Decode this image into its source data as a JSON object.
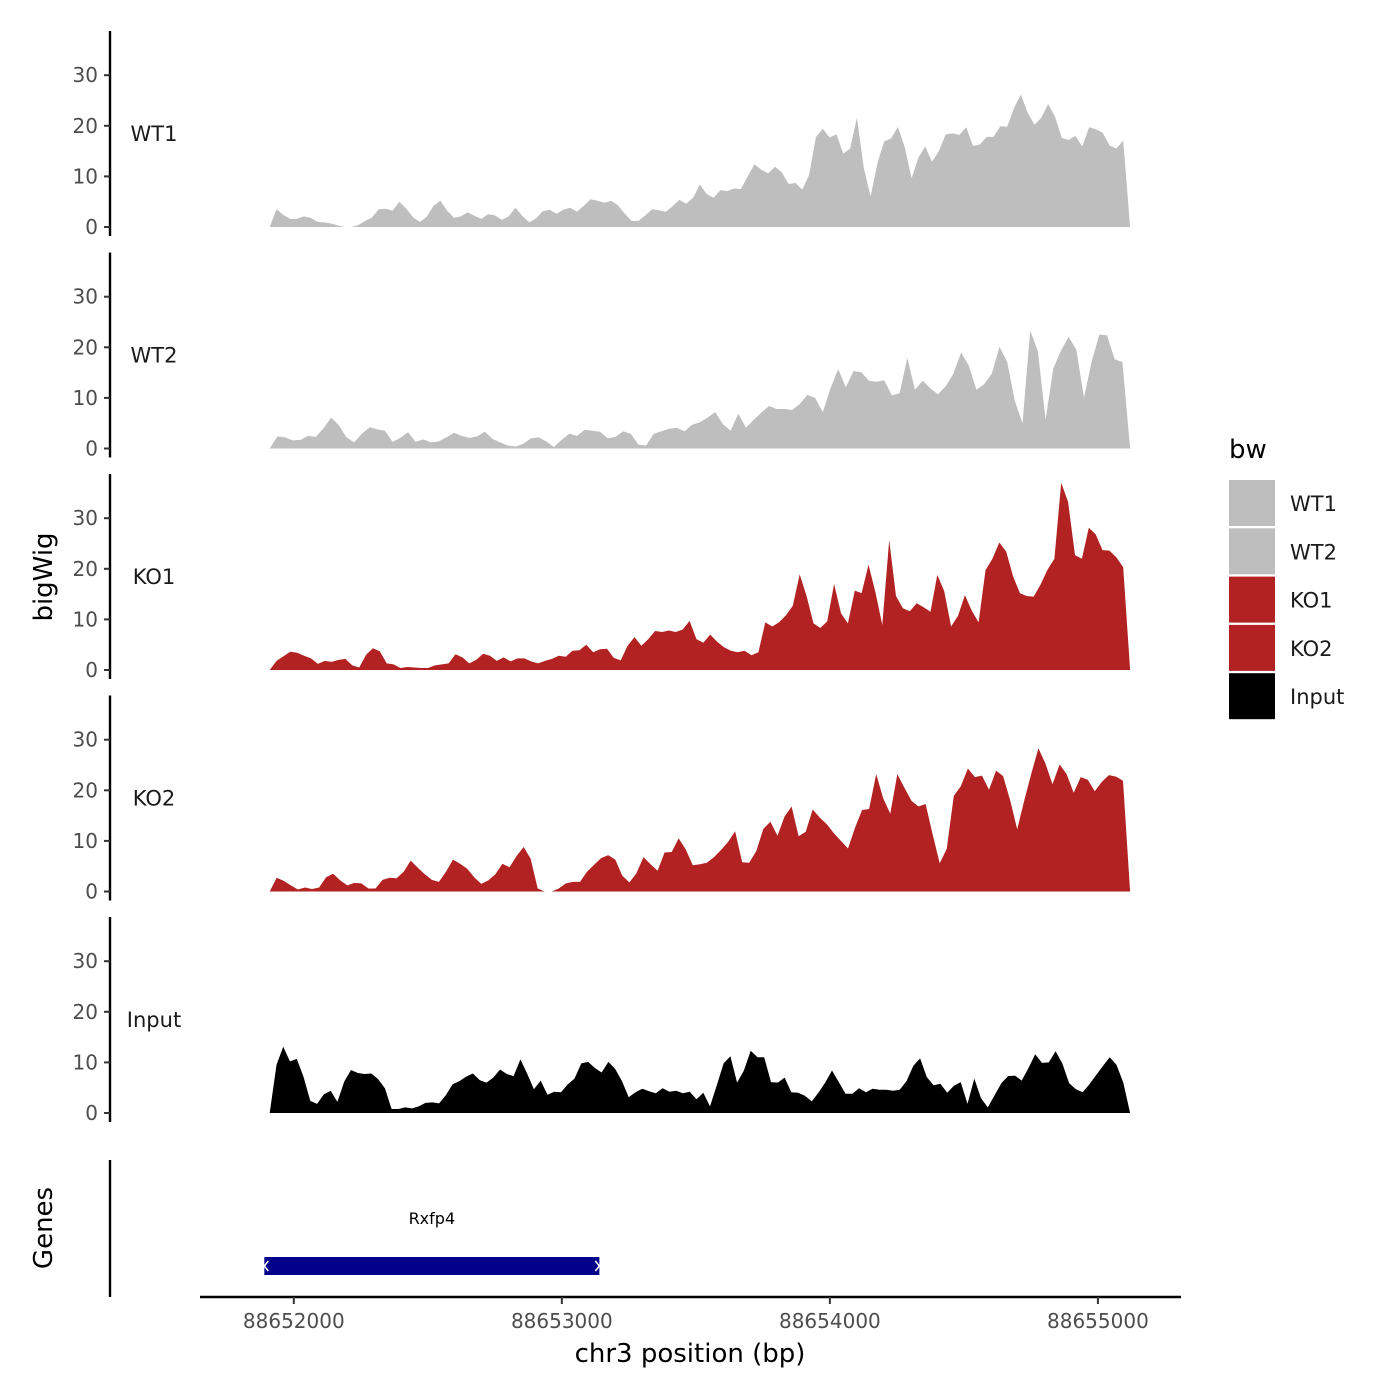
{
  "chart_data": {
    "type": "area",
    "ylabel": "bigWig",
    "genes_label": "Genes",
    "xlabel": "chr3 position (bp)",
    "xlim": [
      88651650,
      88655310
    ],
    "x_ticks": [
      {
        "value": 88652000,
        "label": "88652000"
      },
      {
        "value": 88653000,
        "label": "88653000"
      },
      {
        "value": 88654000,
        "label": "88654000"
      },
      {
        "value": 88655000,
        "label": "88655000"
      }
    ],
    "ylim": [
      0,
      38
    ],
    "y_ticks": [
      {
        "value": 0,
        "label": "0"
      },
      {
        "value": 10,
        "label": "10"
      },
      {
        "value": 20,
        "label": "20"
      },
      {
        "value": 30,
        "label": "30"
      }
    ],
    "legend": {
      "title": "bw",
      "entries": [
        {
          "name": "WT1",
          "color": "#bebebe"
        },
        {
          "name": "WT2",
          "color": "#bebebe"
        },
        {
          "name": "KO1",
          "color": "#b22222"
        },
        {
          "name": "KO2",
          "color": "#b22222"
        },
        {
          "name": "Input",
          "color": "#000000"
        }
      ]
    },
    "series": [
      {
        "name": "WT1",
        "color": "#bebebe",
        "x_start": 88651910,
        "x_end": 88655120,
        "values": [
          0,
          3.5,
          2.4,
          1.6,
          1.6,
          2.1,
          1.8,
          1,
          0.9,
          0.7,
          0.3,
          0,
          0,
          0.4,
          1.2,
          1.9,
          3.5,
          3.6,
          3.2,
          5,
          3.6,
          1.9,
          1,
          2,
          4.2,
          5.2,
          3.2,
          1.8,
          2.1,
          2.9,
          2.2,
          1.6,
          2.5,
          2.3,
          1.4,
          2.1,
          3.8,
          2.2,
          0.9,
          1.7,
          3.1,
          3.4,
          2.6,
          3.4,
          3.8,
          3,
          4.2,
          5.5,
          5.2,
          4.8,
          5.2,
          4.3,
          2.6,
          1.2,
          1.2,
          2.3,
          3.5,
          3.3,
          3,
          4.1,
          5.4,
          4.6,
          5.8,
          8.4,
          6.5,
          5.8,
          7.3,
          7.1,
          7.6,
          7.5,
          10,
          12.4,
          11.3,
          10.6,
          11.9,
          10.8,
          8.5,
          8.7,
          7.4,
          10.3,
          17.8,
          19.4,
          17.7,
          18.3,
          14.5,
          15.5,
          21.6,
          11.7,
          6,
          12.6,
          16.9,
          17.5,
          19.8,
          15.8,
          9.6,
          13.7,
          15.9,
          12.9,
          15,
          18.3,
          18.5,
          18.2,
          19.7,
          16,
          16.3,
          17.8,
          17.8,
          19.9,
          19.8,
          23.5,
          26.2,
          22.6,
          20.2,
          21.6,
          24.3,
          21.8,
          17.6,
          17.2,
          18,
          15.9,
          19.7,
          19.3,
          18.6,
          16.1,
          15.5,
          17.1,
          0
        ]
      },
      {
        "name": "WT2",
        "color": "#bebebe",
        "x_start": 88651910,
        "x_end": 88655120,
        "values": [
          0,
          2.4,
          2.2,
          1.6,
          1.7,
          2.5,
          2.3,
          4,
          6.1,
          4.6,
          2.2,
          1.2,
          2.9,
          4.2,
          3.8,
          3.5,
          1.3,
          2.1,
          3.2,
          1.3,
          1.8,
          1.2,
          1.4,
          2.2,
          3.1,
          2.5,
          2.1,
          2.4,
          3.3,
          1.9,
          1.2,
          0.6,
          0.4,
          0.9,
          2,
          2.2,
          1.4,
          0.3,
          1.7,
          2.9,
          2.5,
          3.7,
          3.5,
          3.3,
          2,
          2.3,
          3.4,
          2.9,
          0.8,
          0.6,
          2.9,
          3.4,
          3.9,
          4.1,
          3.4,
          4.7,
          5.2,
          6.1,
          7.2,
          4.8,
          3.5,
          6.9,
          4.1,
          5.7,
          7.1,
          8.4,
          7.8,
          7.8,
          7.6,
          8.8,
          10.6,
          10,
          7.2,
          11.9,
          15.7,
          12.1,
          15.3,
          15.1,
          13.4,
          13.2,
          13.5,
          10.5,
          10.9,
          17.9,
          11.6,
          13.4,
          11.9,
          10.7,
          12.3,
          14.8,
          19,
          16.4,
          11.6,
          12.7,
          14.8,
          20.1,
          17.1,
          9.4,
          5,
          23.3,
          19.2,
          5.7,
          15.8,
          19.3,
          22.1,
          19.5,
          10.1,
          17.2,
          22.5,
          22.4,
          17.6,
          17.1,
          0
        ]
      },
      {
        "name": "KO1",
        "color": "#b22222",
        "x_start": 88651910,
        "x_end": 88655120,
        "values": [
          0,
          1.8,
          2.7,
          3.6,
          3.4,
          2.8,
          2.3,
          1.2,
          1.8,
          1.6,
          2,
          2.2,
          0.9,
          0.5,
          3,
          4.3,
          3.7,
          1.3,
          1.1,
          0.4,
          0.6,
          0.5,
          0.4,
          0.4,
          0.9,
          1.1,
          1.3,
          3.1,
          2.5,
          1.3,
          2,
          3.2,
          2.8,
          1.8,
          2.5,
          1.7,
          2.3,
          2.3,
          1.7,
          1.3,
          1.8,
          2.2,
          2.8,
          2.6,
          3.8,
          3.9,
          5,
          3.5,
          4.1,
          4.2,
          2.4,
          1.9,
          4.8,
          6.5,
          4.8,
          6.1,
          7.7,
          7.5,
          7.8,
          7.5,
          8,
          9.7,
          6.1,
          5.4,
          7,
          5.6,
          4.5,
          3.8,
          3.5,
          3.8,
          2.9,
          3.5,
          9.4,
          8.6,
          9.4,
          10.8,
          12.7,
          18.9,
          14.6,
          9.2,
          8.3,
          9.6,
          17,
          11.2,
          9.2,
          15.7,
          15.2,
          20.8,
          15.4,
          8.9,
          25.7,
          14.6,
          12.2,
          11.6,
          13.2,
          12.4,
          11.5,
          18.8,
          15.6,
          8.6,
          10.7,
          14.8,
          11.7,
          9.4,
          19.7,
          22,
          25.2,
          23.4,
          18.5,
          15.2,
          14.6,
          14.5,
          16.9,
          19.8,
          22,
          37,
          33.2,
          22.7,
          22,
          28.1,
          26.8,
          23.7,
          23.6,
          22.3,
          20.3,
          0
        ]
      },
      {
        "name": "KO2",
        "color": "#b22222",
        "x_start": 88651910,
        "x_end": 88655120,
        "values": [
          0,
          2.7,
          2.1,
          1.2,
          0.4,
          0.8,
          0.5,
          0.8,
          2.8,
          3.5,
          2.2,
          1.2,
          1.7,
          1.6,
          0.6,
          0.6,
          2.3,
          2.7,
          2.6,
          3.9,
          6.1,
          4.7,
          3.4,
          2.3,
          1.9,
          3.9,
          6.3,
          5.5,
          4.5,
          2.8,
          1.5,
          2.2,
          3.4,
          5.5,
          4.8,
          7,
          8.8,
          6.5,
          0.6,
          0,
          0,
          0.6,
          1.6,
          1.9,
          1.9,
          3.9,
          5.3,
          6.6,
          7.2,
          6.3,
          3.1,
          1.8,
          3.6,
          6.8,
          5.4,
          4.1,
          7.7,
          7.8,
          10.5,
          8.3,
          5.2,
          5.4,
          5.7,
          6.8,
          8.2,
          9.8,
          11.9,
          5.8,
          5.7,
          8,
          12.4,
          13.8,
          11,
          14.8,
          16.8,
          10.9,
          11.8,
          16.2,
          14.6,
          13.3,
          11.5,
          10,
          8.5,
          12.6,
          16.1,
          16.3,
          23.2,
          18.4,
          15.4,
          23.2,
          20.5,
          17.9,
          16.8,
          17.3,
          11.3,
          5.6,
          8.4,
          18.9,
          20.8,
          24.3,
          22.6,
          22.9,
          20.1,
          23.9,
          22.8,
          18,
          12.3,
          18,
          23.3,
          28.3,
          25.3,
          21.2,
          25.1,
          23.2,
          19.5,
          22.6,
          22.1,
          19.8,
          21.7,
          23,
          22.7,
          21.9,
          0
        ]
      },
      {
        "name": "Input",
        "color": "#000000",
        "x_start": 88651910,
        "x_end": 88655120,
        "values": [
          0,
          9.5,
          13.1,
          10.2,
          10.7,
          7.1,
          2.4,
          1.8,
          3.7,
          4.4,
          2.2,
          6.2,
          8.5,
          7.9,
          7.7,
          7.8,
          6.7,
          4.9,
          0.8,
          0.8,
          1.1,
          0.9,
          1.3,
          2,
          2.1,
          1.9,
          3.5,
          5.7,
          6.3,
          7.2,
          7.8,
          6.5,
          6,
          7,
          8.6,
          7.7,
          7.3,
          10.6,
          7.8,
          4.7,
          6.4,
          3.6,
          4.2,
          4.1,
          5.7,
          6.8,
          9.8,
          10.1,
          8.9,
          8,
          10.1,
          8.7,
          6.3,
          3.1,
          4.1,
          4.8,
          4.3,
          3.9,
          4.9,
          4.2,
          4.4,
          3.9,
          4.2,
          2.7,
          4,
          1.3,
          5.5,
          9.8,
          11.2,
          6,
          8.4,
          12.3,
          11,
          11,
          6.1,
          6,
          7,
          4.1,
          4,
          3.4,
          2.3,
          4,
          6,
          8.4,
          6.1,
          3.8,
          3.8,
          4.9,
          4.1,
          4.8,
          4.6,
          4.6,
          4.4,
          4.6,
          6.3,
          9.3,
          10.8,
          7.1,
          5.5,
          5.8,
          4,
          5.4,
          6.1,
          1.8,
          6.8,
          2.9,
          1.1,
          3.5,
          5.9,
          7.3,
          7.4,
          6.4,
          8.9,
          11.6,
          9.9,
          10,
          12.2,
          9.8,
          5.9,
          4.7,
          4.1,
          5.7,
          7.5,
          9.3,
          11,
          9.5,
          6,
          0
        ]
      }
    ],
    "genes": [
      {
        "name": "Rxfp4",
        "start": 88651890,
        "end": 88653140,
        "color": "#00008b"
      }
    ]
  }
}
